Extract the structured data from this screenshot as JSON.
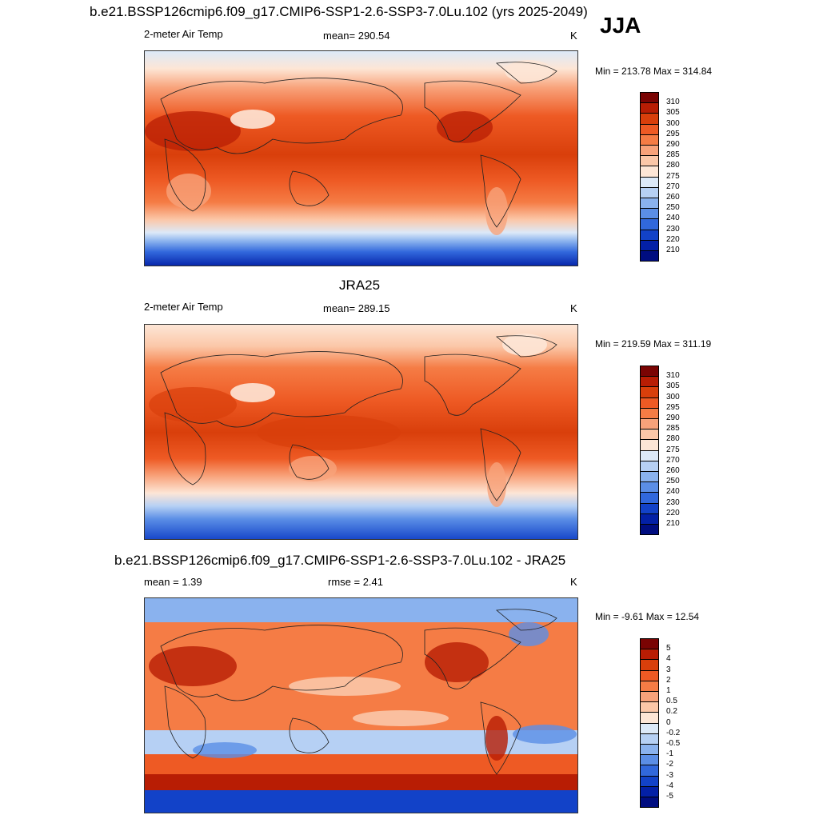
{
  "header": {
    "title": "b.e21.BSSP126cmip6.f09_g17.CMIP6-SSP1-2.6-SSP3-7.0Lu.102 (yrs 2025-2049)",
    "season": "JJA"
  },
  "panel1": {
    "variable": "2-meter Air Temp",
    "mean": "mean= 290.54",
    "units": "K",
    "minmax": "Min = 213.78 Max = 314.84"
  },
  "panel2": {
    "title": "JRA25",
    "variable": "2-meter Air Temp",
    "mean": "mean= 289.15",
    "units": "K",
    "minmax": "Min = 219.59 Max = 311.19"
  },
  "panel3": {
    "title": "b.e21.BSSP126cmip6.f09_g17.CMIP6-SSP1-2.6-SSP3-7.0Lu.102 - JRA25",
    "mean": "mean =   1.39",
    "rmse": "rmse =   2.41",
    "units": "K",
    "minmax": "Min =  -9.61 Max =  12.54"
  },
  "colorbars": {
    "temperature": {
      "labels": [
        "310",
        "305",
        "300",
        "295",
        "290",
        "285",
        "280",
        "275",
        "270",
        "260",
        "250",
        "240",
        "230",
        "220",
        "210"
      ],
      "colors": [
        "#7a0403",
        "#b81d04",
        "#d93f0b",
        "#ee5a24",
        "#f57c45",
        "#f8a27a",
        "#fbc7a8",
        "#fde6d6",
        "#dce9f8",
        "#b6d0f4",
        "#8ab2ee",
        "#5b8ee6",
        "#3168dc",
        "#1242c8",
        "#0320a6",
        "#000d80"
      ]
    },
    "difference": {
      "labels": [
        "5",
        "4",
        "3",
        "2",
        "1",
        "0.5",
        "0.2",
        "0",
        "-0.2",
        "-0.5",
        "-1",
        "-2",
        "-3",
        "-4",
        "-5"
      ],
      "colors": [
        "#7a0403",
        "#b81d04",
        "#d93f0b",
        "#ee5a24",
        "#f57c45",
        "#f8a27a",
        "#fbc7a8",
        "#fde6d6",
        "#dce9f8",
        "#b6d0f4",
        "#8ab2ee",
        "#5b8ee6",
        "#3168dc",
        "#1242c8",
        "#0320a6",
        "#000d80"
      ]
    }
  }
}
